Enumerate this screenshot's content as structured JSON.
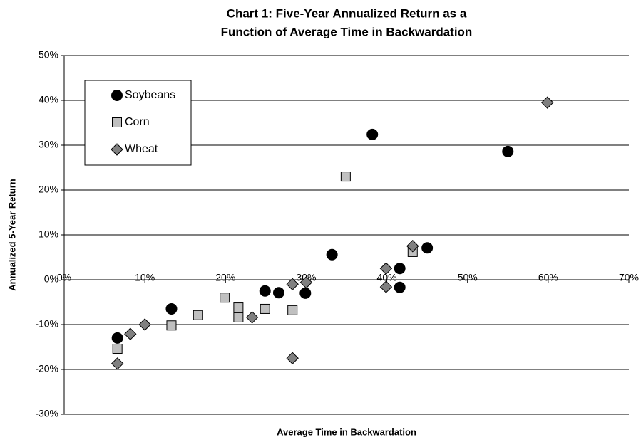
{
  "chart_data": {
    "type": "scatter",
    "title": [
      "Chart 1: Five-Year Annualized Return as a",
      "Function of Average Time in Backwardation"
    ],
    "x_label": "Average Time in Backwardation",
    "y_label": "Annualized 5-Year Return",
    "xlim": [
      0,
      70
    ],
    "xticks": [
      {
        "value": 0,
        "label": "0%"
      },
      {
        "value": 10,
        "label": "10%"
      },
      {
        "value": 20,
        "label": "20%"
      },
      {
        "value": 30,
        "label": "30%"
      },
      {
        "value": 40,
        "label": "40%"
      },
      {
        "value": 50,
        "label": "50%"
      },
      {
        "value": 60,
        "label": "60%"
      },
      {
        "value": 70,
        "label": "70%"
      }
    ],
    "ylim": [
      -30,
      50
    ],
    "yticks": [
      {
        "value": -30,
        "label": "-30%"
      },
      {
        "value": -20,
        "label": "-20%"
      },
      {
        "value": -10,
        "label": "-10%"
      },
      {
        "value": 0,
        "label": "0%"
      },
      {
        "value": 10,
        "label": "10%"
      },
      {
        "value": 20,
        "label": "20%"
      },
      {
        "value": 30,
        "label": "30%"
      },
      {
        "value": 40,
        "label": "40%"
      },
      {
        "value": 50,
        "label": "50%"
      }
    ],
    "grid": true,
    "legend": "top-left",
    "series": [
      {
        "name": "Soybeans",
        "color": "#000000",
        "marker": "circle",
        "x": [
          6.6,
          13.3,
          24.9,
          26.6,
          29.9,
          33.2,
          38.2,
          41.6,
          41.6,
          45.0,
          55.0
        ],
        "values": [
          -13.0,
          -6.5,
          -2.5,
          -2.9,
          -3.0,
          5.6,
          32.4,
          2.5,
          -1.7,
          7.1,
          28.6
        ]
      },
      {
        "name": "Corn",
        "color": "#c0c0c0",
        "marker": "square",
        "x": [
          6.6,
          13.3,
          16.6,
          19.9,
          21.6,
          21.6,
          24.9,
          28.3,
          34.9,
          43.2
        ],
        "values": [
          -15.4,
          -10.2,
          -7.9,
          -4.0,
          -6.2,
          -8.4,
          -6.5,
          -6.8,
          23.0,
          6.2
        ]
      },
      {
        "name": "Wheat",
        "color": "#808080",
        "marker": "diamond",
        "x": [
          6.6,
          8.2,
          10.0,
          23.3,
          28.3,
          30.0,
          28.3,
          39.9,
          39.9,
          43.2,
          59.9
        ],
        "values": [
          -18.7,
          -12.1,
          -10.0,
          -8.4,
          -1.0,
          -0.6,
          -17.5,
          2.5,
          -1.6,
          7.5,
          39.5
        ]
      }
    ]
  }
}
